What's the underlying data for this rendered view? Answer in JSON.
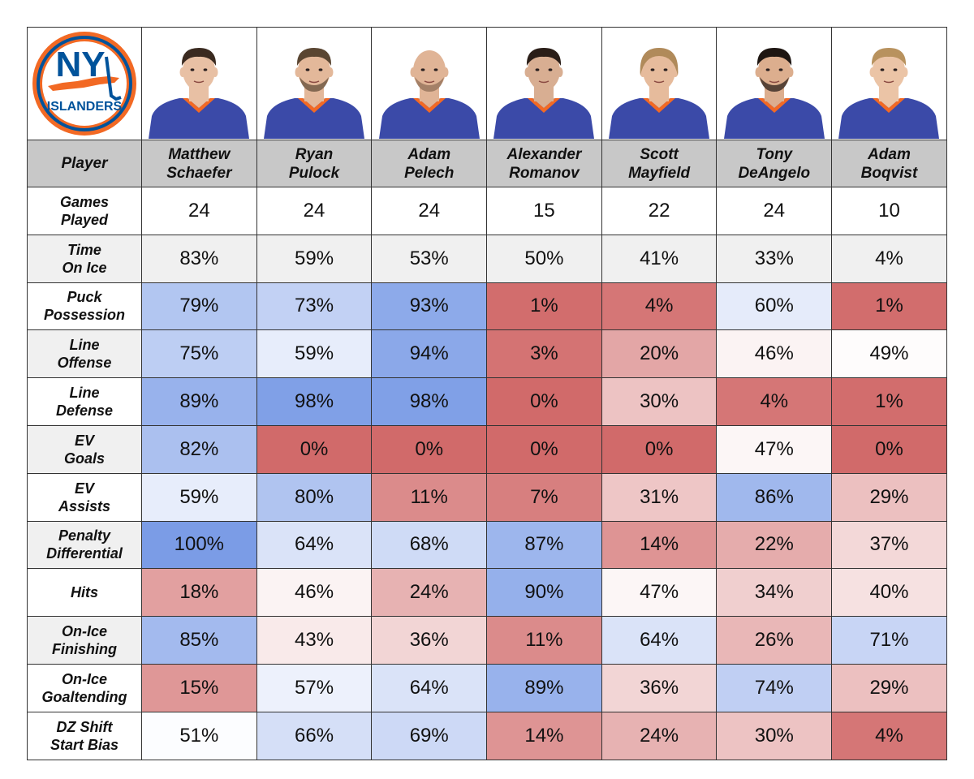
{
  "logo": {
    "text_top": "NY",
    "text_bottom": "ISLANDERS",
    "colors": {
      "orange": "#f26924",
      "blue": "#00539b",
      "white": "#ffffff"
    }
  },
  "header": {
    "label": "Player"
  },
  "players": [
    {
      "first": "Matthew",
      "last": "Schaefer",
      "head": "bald-none",
      "hair": "#3a2a20",
      "skin": "#e8c0a4",
      "style": "fringe"
    },
    {
      "first": "Ryan",
      "last": "Pulock",
      "hair": "#5a4632",
      "skin": "#e3b89a",
      "style": "short-beard"
    },
    {
      "first": "Adam",
      "last": "Pelech",
      "hair": "#d9b79c",
      "skin": "#e0b496",
      "style": "bald"
    },
    {
      "first": "Alexander",
      "last": "Romanov",
      "hair": "#2a1e18",
      "skin": "#d8ae92",
      "style": "swept"
    },
    {
      "first": "Scott",
      "last": "Mayfield",
      "hair": "#b08a5a",
      "skin": "#e6bb9c",
      "style": "long"
    },
    {
      "first": "Tony",
      "last": "DeAngelo",
      "hair": "#1e1612",
      "skin": "#dcae8e",
      "style": "dark-beard"
    },
    {
      "first": "Adam",
      "last": "Boqvist",
      "hair": "#b8925e",
      "skin": "#ebc4a6",
      "style": "swept-light"
    }
  ],
  "colors": {
    "jersey": "#3b4aa8",
    "collar": "#f26924",
    "neutral_bg": "#f0f0f0",
    "high": "#7b9ce6",
    "mid": "#ffffff",
    "low": "#d16a6a"
  },
  "chart_data": {
    "type": "table",
    "title": "",
    "columns": [
      "Matthew Schaefer",
      "Ryan Pulock",
      "Adam Pelech",
      "Alexander Romanov",
      "Scott Mayfield",
      "Tony DeAngelo",
      "Adam Boqvist"
    ],
    "rows": [
      {
        "label1": "Games",
        "label2": "Played",
        "values": [
          "24",
          "24",
          "24",
          "15",
          "22",
          "24",
          "10"
        ],
        "shaded": false,
        "bg": "#ffffff"
      },
      {
        "label1": "Time",
        "label2": "On Ice",
        "values": [
          "83%",
          "59%",
          "53%",
          "50%",
          "41%",
          "33%",
          "4%"
        ],
        "shaded": false,
        "bg": "#f0f0f0"
      },
      {
        "label1": "Puck",
        "label2": "Possession",
        "values": [
          "79%",
          "73%",
          "93%",
          "1%",
          "4%",
          "60%",
          "1%"
        ],
        "shaded": true,
        "bg": "#ffffff"
      },
      {
        "label1": "Line",
        "label2": "Offense",
        "values": [
          "75%",
          "59%",
          "94%",
          "3%",
          "20%",
          "46%",
          "49%"
        ],
        "shaded": true,
        "bg": "#f0f0f0"
      },
      {
        "label1": "Line",
        "label2": "Defense",
        "values": [
          "89%",
          "98%",
          "98%",
          "0%",
          "30%",
          "4%",
          "1%"
        ],
        "shaded": true,
        "bg": "#ffffff"
      },
      {
        "label1": "EV",
        "label2": "Goals",
        "values": [
          "82%",
          "0%",
          "0%",
          "0%",
          "0%",
          "47%",
          "0%"
        ],
        "shaded": true,
        "bg": "#f0f0f0"
      },
      {
        "label1": "EV",
        "label2": "Assists",
        "values": [
          "59%",
          "80%",
          "11%",
          "7%",
          "31%",
          "86%",
          "29%"
        ],
        "shaded": true,
        "bg": "#ffffff"
      },
      {
        "label1": "Penalty",
        "label2": "Differential",
        "values": [
          "100%",
          "64%",
          "68%",
          "87%",
          "14%",
          "22%",
          "37%"
        ],
        "shaded": true,
        "bg": "#f0f0f0"
      },
      {
        "label1": "Hits",
        "label2": "",
        "values": [
          "18%",
          "46%",
          "24%",
          "90%",
          "47%",
          "34%",
          "40%"
        ],
        "shaded": true,
        "bg": "#ffffff"
      },
      {
        "label1": "On-Ice",
        "label2": "Finishing",
        "values": [
          "85%",
          "43%",
          "36%",
          "11%",
          "64%",
          "26%",
          "71%"
        ],
        "shaded": true,
        "bg": "#f0f0f0"
      },
      {
        "label1": "On-Ice",
        "label2": "Goaltending",
        "values": [
          "15%",
          "57%",
          "64%",
          "89%",
          "36%",
          "74%",
          "29%"
        ],
        "shaded": true,
        "bg": "#ffffff"
      },
      {
        "label1": "DZ Shift",
        "label2": "Start Bias",
        "values": [
          "51%",
          "66%",
          "69%",
          "14%",
          "24%",
          "30%",
          "4%"
        ],
        "shaded": true,
        "bg": "#ffffff"
      }
    ]
  }
}
